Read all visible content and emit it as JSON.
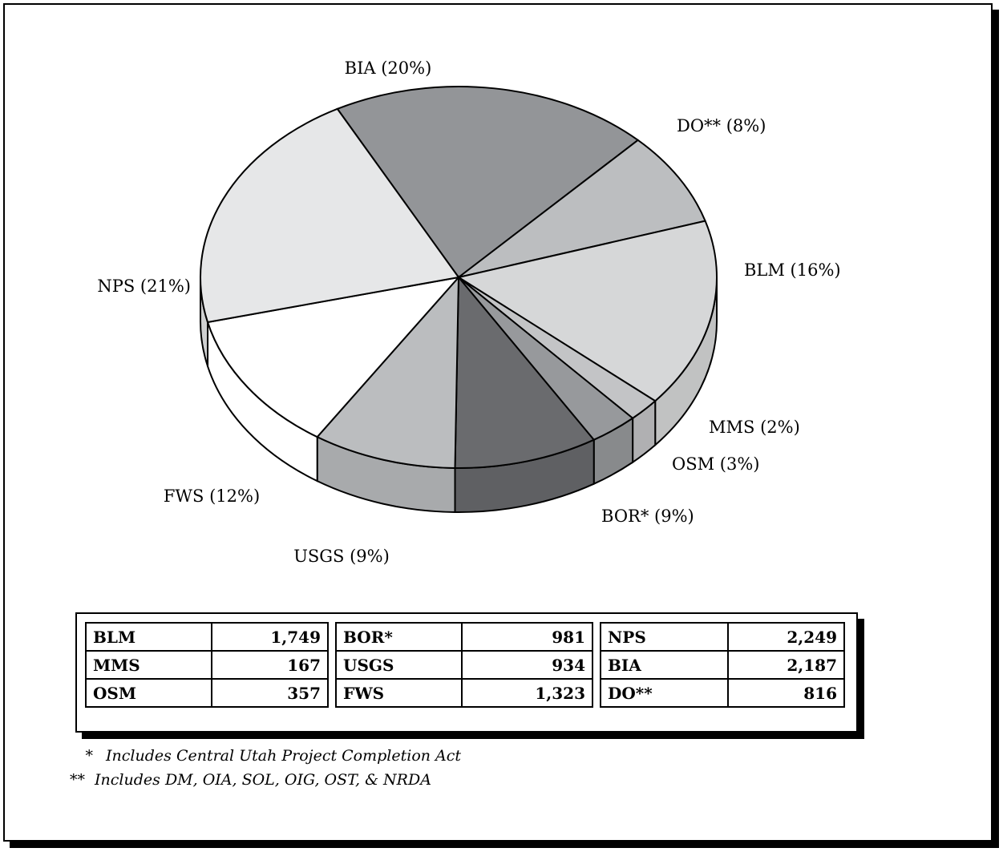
{
  "chart_data": {
    "type": "pie",
    "title": "",
    "slices": [
      {
        "label": "BIA",
        "pct_label": "BIA (20%)",
        "value": 20,
        "color": "#939598"
      },
      {
        "label": "DO**",
        "pct_label": "DO** (8%)",
        "value": 8,
        "color": "#bcbec0"
      },
      {
        "label": "BLM",
        "pct_label": "BLM (16%)",
        "value": 16,
        "color": "#d6d7d8"
      },
      {
        "label": "MMS",
        "pct_label": "MMS (2%)",
        "value": 2,
        "color": "#c3c4c6"
      },
      {
        "label": "OSM",
        "pct_label": "OSM (3%)",
        "value": 3,
        "color": "#97999c"
      },
      {
        "label": "BOR*",
        "pct_label": "BOR* (9%)",
        "value": 9,
        "color": "#6a6b6e"
      },
      {
        "label": "USGS",
        "pct_label": "USGS (9%)",
        "value": 9,
        "color": "#bbbdbf"
      },
      {
        "label": "FWS",
        "pct_label": "FWS (12%)",
        "value": 12,
        "color": "#ffffff"
      },
      {
        "label": "NPS",
        "pct_label": "NPS (21%)",
        "value": 21,
        "color": "#e6e7e8"
      }
    ]
  },
  "table": {
    "groups": [
      [
        [
          "BLM",
          "1,749"
        ],
        [
          "MMS",
          "167"
        ],
        [
          "OSM",
          "357"
        ]
      ],
      [
        [
          "BOR*",
          "981"
        ],
        [
          "USGS",
          "934"
        ],
        [
          "FWS",
          "1,323"
        ]
      ],
      [
        [
          "NPS",
          "2,249"
        ],
        [
          "BIA",
          "2,187"
        ],
        [
          "DO**",
          "816"
        ]
      ]
    ]
  },
  "footnotes": {
    "note1_mark": "*",
    "note1": "Includes Central Utah Project Completion Act",
    "note2_mark": "**",
    "note2": "Includes DM, OIA, SOL, OIG, OST, & NRDA"
  }
}
